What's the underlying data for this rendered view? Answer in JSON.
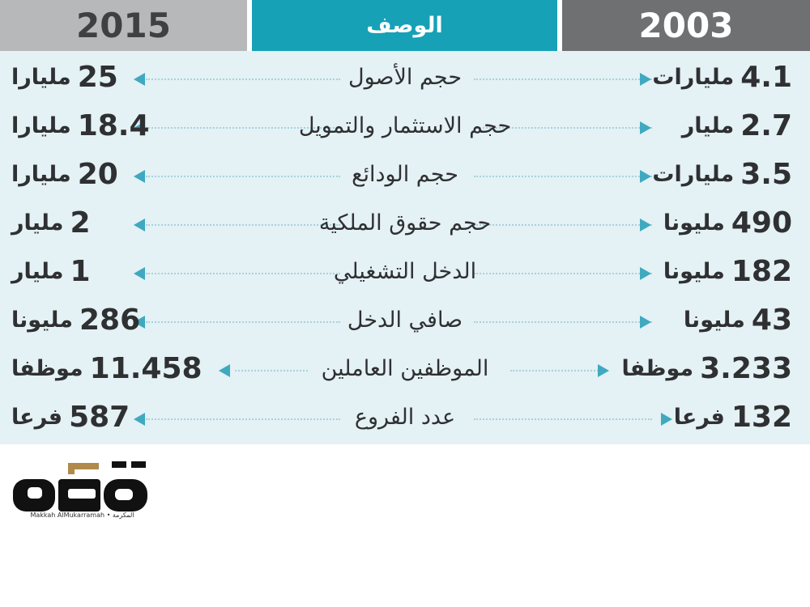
{
  "header": {
    "col_2015": "2015",
    "col_desc": "الوصف",
    "col_2003": "2003"
  },
  "rows": [
    {
      "label": "حجم الأصول",
      "v2015": "25",
      "u2015": "مليارا",
      "v2003": "4.1",
      "u2003": "مليارات"
    },
    {
      "label": "حجم الاستثمار والتمويل",
      "v2015": "18.4",
      "u2015": "مليارا",
      "v2003": "2.7",
      "u2003": "مليار"
    },
    {
      "label": "حجم الودائع",
      "v2015": "20",
      "u2015": "مليارا",
      "v2003": "3.5",
      "u2003": "مليارات"
    },
    {
      "label": "حجم حقوق الملكية",
      "v2015": "2",
      "u2015": "مليار",
      "v2003": "490",
      "u2003": "مليونا"
    },
    {
      "label": "الدخل التشغيلي",
      "v2015": "1",
      "u2015": "مليار",
      "v2003": "182",
      "u2003": "مليونا"
    },
    {
      "label": "صافي الدخل",
      "v2015": "286",
      "u2015": "مليونا",
      "v2003": "43",
      "u2003": "مليونا"
    },
    {
      "label": "الموظفين العاملين",
      "v2015": "11.458",
      "u2015": "موظفا",
      "v2003": "3.233",
      "u2003": "موظفا"
    },
    {
      "label": "عدد الفروع",
      "v2015": "587",
      "u2015": "فرعا",
      "v2003": "132",
      "u2003": "فرعا"
    }
  ],
  "logo": {
    "text": "مكة",
    "subtitle": "Makkah AlMukarramah • المكرمة"
  },
  "colors": {
    "accent": "#16a1b6",
    "dark_header": "#6f7072",
    "light_header": "#b7b8ba",
    "row_background": "#e4f1f5",
    "logo_accent": "#b08a4a"
  }
}
